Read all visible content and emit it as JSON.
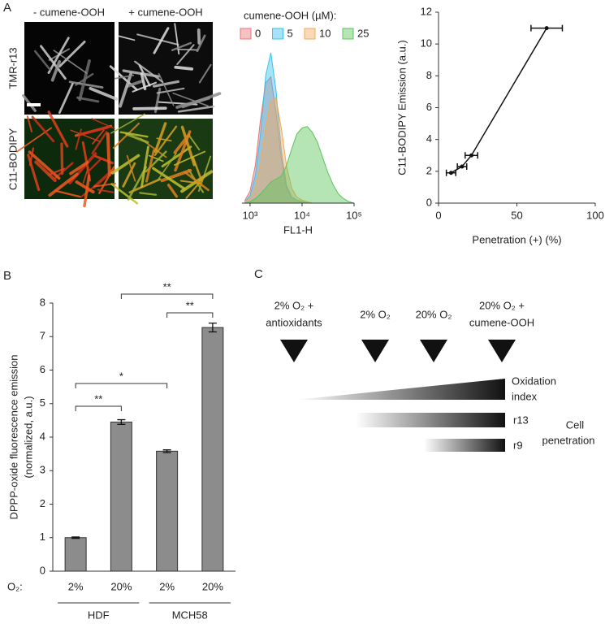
{
  "figure": {
    "panel_labels": [
      "A",
      "B",
      "C"
    ],
    "microscopy": {
      "columns": [
        "- cumene-OOH",
        "+ cumene-OOH"
      ],
      "rows": [
        "TMR-r13",
        "C11-BODIPY"
      ]
    },
    "diagram": {
      "conditions": [
        [
          "2% O₂ +",
          "antioxidants"
        ],
        [
          "2% O₂"
        ],
        [
          "20% O₂"
        ],
        [
          "20% O₂ +",
          "cumene-OOH"
        ]
      ],
      "oxidation_label": [
        "Oxidation",
        "index"
      ],
      "probes": [
        "r13",
        "r9"
      ],
      "penetration_label": [
        "Cell",
        "penetration"
      ]
    }
  },
  "chart_data": [
    {
      "type": "density",
      "legend_title": "cumene-OOH (µM):",
      "xlabel": "FL1-H",
      "x": [
        800,
        1000,
        1260,
        1580,
        2000,
        2510,
        3160,
        3980,
        5010,
        6310,
        7940,
        10000,
        12600,
        15800,
        20000,
        25100,
        31600,
        39800,
        50100,
        63100,
        79400,
        100000
      ],
      "xlim": [
        700,
        100000
      ],
      "log_x": true,
      "xticks": [
        {
          "value": 1000,
          "label": "10³"
        },
        {
          "value": 10000,
          "label": "10⁴"
        },
        {
          "value": 100000,
          "label": "10⁵"
        }
      ],
      "ylim": [
        0,
        100
      ],
      "series": [
        {
          "name": "0",
          "color": "#e8757a",
          "values": [
            2,
            8,
            25,
            55,
            80,
            84,
            60,
            30,
            10,
            4,
            2,
            1,
            0,
            0,
            0,
            0,
            0,
            0,
            0,
            0,
            0,
            0
          ]
        },
        {
          "name": "5",
          "color": "#3cc1ea",
          "values": [
            1,
            5,
            18,
            45,
            85,
            100,
            75,
            35,
            12,
            4,
            2,
            1,
            0,
            0,
            0,
            0,
            0,
            0,
            0,
            0,
            0,
            0
          ]
        },
        {
          "name": "10",
          "color": "#f3a95a",
          "values": [
            1,
            3,
            10,
            25,
            50,
            68,
            70,
            50,
            25,
            10,
            4,
            2,
            1,
            0,
            0,
            0,
            0,
            0,
            0,
            0,
            0,
            0
          ]
        },
        {
          "name": "25",
          "color": "#5cc45c",
          "values": [
            0,
            1,
            3,
            6,
            10,
            14,
            16,
            18,
            25,
            36,
            46,
            50,
            51,
            47,
            40,
            30,
            20,
            12,
            6,
            3,
            1,
            0
          ]
        }
      ]
    },
    {
      "type": "scatter",
      "xlabel": "Penetration (+) (%)",
      "ylabel": "C11-BODIPY Emission (a.u.)",
      "x": [
        8,
        15,
        21,
        69
      ],
      "xerr": [
        3,
        3,
        4,
        10
      ],
      "values": [
        1.9,
        2.3,
        3.0,
        11.0
      ],
      "color": "#111111",
      "xlim": [
        0,
        100
      ],
      "xticks": [
        0,
        50,
        100
      ],
      "ylim": [
        0,
        12
      ],
      "yticks": [
        0,
        2,
        4,
        6,
        8,
        10,
        12
      ]
    },
    {
      "type": "bar",
      "ylabel": [
        "DPPP-oxide fluorescence emission",
        "(normalized, a.u.)"
      ],
      "xlabel": "O₂:",
      "categories": [
        "2%",
        "20%",
        "2%",
        "20%"
      ],
      "groups": [
        "HDF",
        "MCH58"
      ],
      "values": [
        1.0,
        4.45,
        3.58,
        7.27
      ],
      "errors": [
        0.02,
        0.07,
        0.04,
        0.13
      ],
      "color": "#8c8c8c",
      "significance": [
        "**",
        "*",
        "**",
        "**"
      ],
      "ylim": [
        0,
        8
      ],
      "yticks": [
        0,
        1,
        2,
        3,
        4,
        5,
        6,
        7,
        8
      ]
    }
  ]
}
